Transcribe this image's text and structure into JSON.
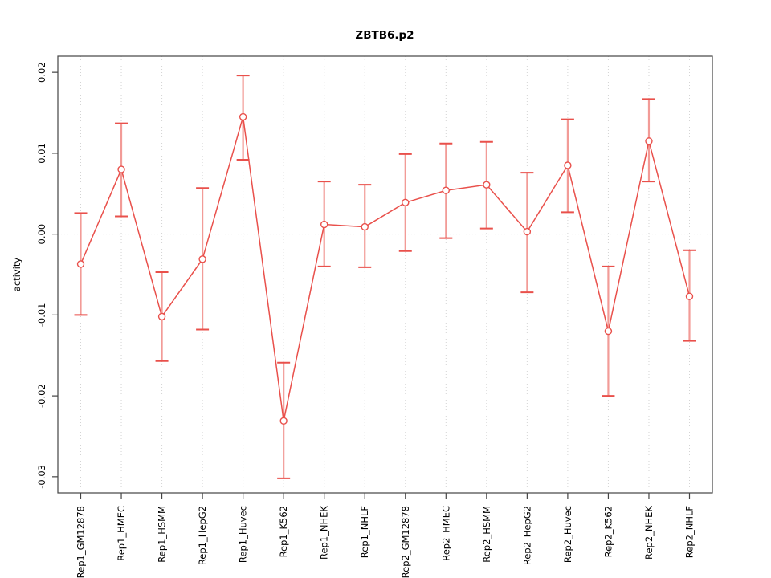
{
  "chart_data": {
    "type": "line",
    "title": "ZBTB6.p2",
    "xlabel": "",
    "ylabel": "activity",
    "legend": "none",
    "grid": {
      "vertical": "dotted at every category",
      "horizontal": "dotted at zero only"
    },
    "ylim": [
      -0.032,
      0.022
    ],
    "yticks": [
      "0.02",
      "0.01",
      "0.00",
      "-0.01",
      "-0.02",
      "-0.03"
    ],
    "categories": [
      "Rep1_GM12878",
      "Rep1_HMEC",
      "Rep1_HSMM",
      "Rep1_HepG2",
      "Rep1_Huvec",
      "Rep1_K562",
      "Rep1_NHEK",
      "Rep1_NHLF",
      "Rep2_GM12878",
      "Rep2_HMEC",
      "Rep2_HSMM",
      "Rep2_HepG2",
      "Rep2_Huvec",
      "Rep2_K562",
      "Rep2_NHEK",
      "Rep2_NHLF"
    ],
    "series": [
      {
        "name": "mean",
        "values": [
          -0.0037,
          0.008,
          -0.0102,
          -0.0031,
          0.0145,
          -0.0231,
          0.0012,
          0.0009,
          0.0039,
          0.0054,
          0.0061,
          0.0003,
          0.0085,
          -0.012,
          0.0115,
          -0.0077
        ]
      },
      {
        "name": "ci_upper",
        "values": [
          0.0026,
          0.0137,
          -0.0047,
          0.0057,
          0.0196,
          -0.0159,
          0.0065,
          0.0061,
          0.0099,
          0.0112,
          0.0114,
          0.0076,
          0.0142,
          -0.004,
          0.0167,
          -0.002
        ]
      },
      {
        "name": "ci_lower",
        "values": [
          -0.01,
          0.0022,
          -0.0157,
          -0.0118,
          0.0092,
          -0.0302,
          -0.004,
          -0.0041,
          -0.0021,
          -0.0005,
          0.0007,
          -0.0072,
          0.0027,
          -0.02,
          0.0065,
          -0.0132
        ]
      }
    ],
    "colors": {
      "line": "#e9504b",
      "point": "#e9504b",
      "error_bar": "#f29b97",
      "error_cap": "#e9504b",
      "grid": "#d4d4d4",
      "box": "#444444",
      "background": "#ffffff",
      "text": "#000000"
    }
  }
}
